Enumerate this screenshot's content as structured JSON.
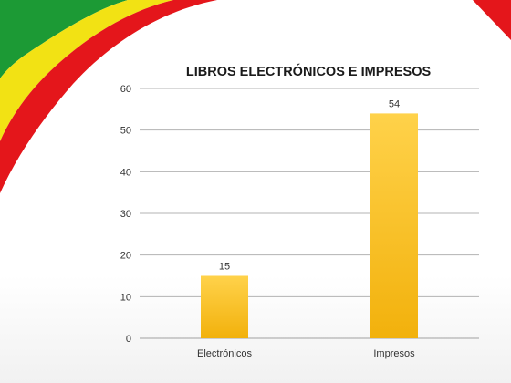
{
  "slide": {
    "ribbon_colors": {
      "green": "#1c9a35",
      "yellow": "#f2e214",
      "red": "#e4161b"
    }
  },
  "chart_data": {
    "type": "bar",
    "title": "LIBROS ELECTRÓNICOS E IMPRESOS",
    "categories": [
      "Electrónicos",
      "Impresos"
    ],
    "series": [
      {
        "values": [
          15,
          54
        ]
      }
    ],
    "data_labels": [
      "15",
      "54"
    ],
    "ylim": [
      0,
      60
    ],
    "yticks": [
      0,
      10,
      20,
      30,
      40,
      50,
      60
    ],
    "ytick_labels": [
      "0",
      "10",
      "20",
      "30",
      "40",
      "50",
      "60"
    ],
    "grid": true,
    "legend": "none",
    "bar_color_top": "#ffd24a",
    "bar_color_bottom": "#f2b10c"
  }
}
